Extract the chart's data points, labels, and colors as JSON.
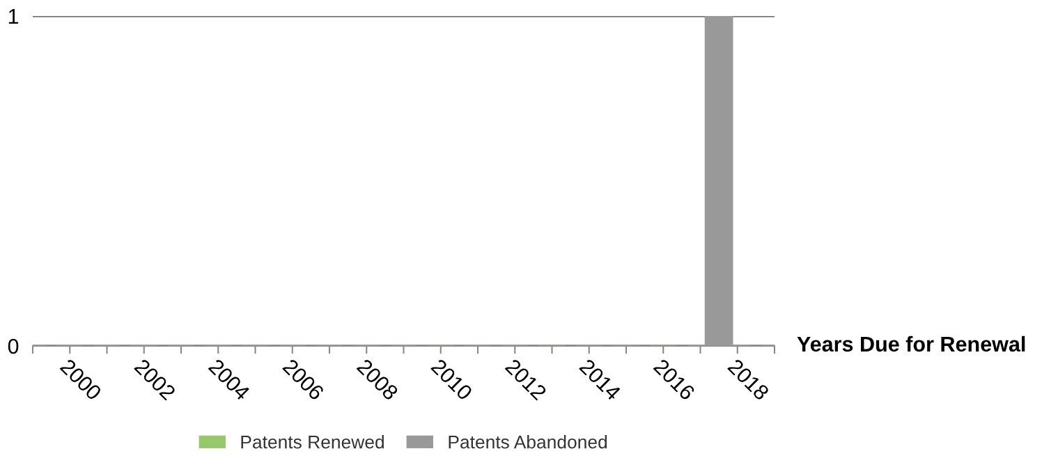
{
  "chart_data": {
    "type": "bar",
    "xlabel": "Years Due for Renewal",
    "series": [
      {
        "name": "Patents Renewed",
        "color": "#97c86b",
        "x": [
          1999,
          2000,
          2001,
          2002,
          2003,
          2004,
          2005,
          2006,
          2007,
          2008,
          2009,
          2010,
          2011,
          2012,
          2013,
          2014,
          2015,
          2016,
          2017,
          2018,
          2019
        ],
        "values": [
          0,
          0,
          0,
          0,
          0,
          0,
          0,
          0,
          0,
          0,
          0,
          0,
          0,
          0,
          0,
          0,
          0,
          0,
          0,
          0,
          0
        ]
      },
      {
        "name": "Patents Abandoned",
        "color": "#999999",
        "x": [
          1999,
          2000,
          2001,
          2002,
          2003,
          2004,
          2005,
          2006,
          2007,
          2008,
          2009,
          2010,
          2011,
          2012,
          2013,
          2014,
          2015,
          2016,
          2017,
          2017.5,
          2018,
          2019
        ],
        "values": [
          0,
          0,
          0,
          0,
          0,
          0,
          0,
          0,
          0,
          0,
          0,
          0,
          0,
          0,
          0,
          0,
          0,
          0,
          0,
          1,
          0,
          0
        ]
      }
    ],
    "xlim": [
      1999,
      2019
    ],
    "xticks": [
      {
        "value": 1999,
        "label": null
      },
      2000,
      {
        "value": 2001,
        "label": null
      },
      2002,
      {
        "value": 2003,
        "label": null
      },
      2004,
      {
        "value": 2005,
        "label": null
      },
      2006,
      {
        "value": 2007,
        "label": null
      },
      2008,
      {
        "value": 2009,
        "label": null
      },
      2010,
      {
        "value": 2011,
        "label": null
      },
      2012,
      {
        "value": 2013,
        "label": null
      },
      2014,
      {
        "value": 2015,
        "label": null
      },
      2016,
      {
        "value": 2017,
        "label": null
      },
      2018,
      {
        "value": 2019,
        "label": null
      }
    ],
    "ylim": [
      0,
      1
    ],
    "yticks": [
      0,
      1
    ],
    "grid": "y",
    "legend": "bottom"
  }
}
